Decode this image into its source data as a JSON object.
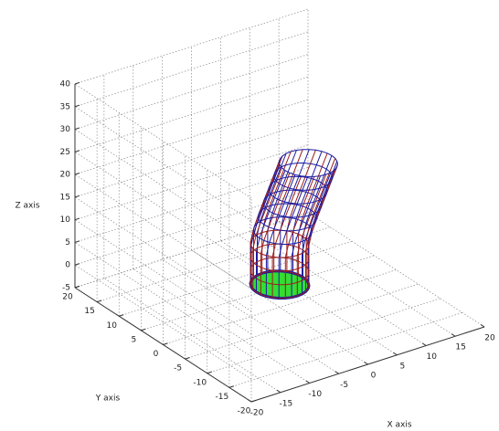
{
  "chart_data": {
    "type": "tube3d",
    "x_label": "X axis",
    "y_label": "Y axis",
    "z_label": "Z axis",
    "xlim": [
      -20,
      20
    ],
    "ylim": [
      -20,
      20
    ],
    "zlim": [
      -5,
      40
    ],
    "xticks": [
      -20,
      -15,
      -10,
      -5,
      0,
      5,
      10,
      15,
      20
    ],
    "yticks": [
      -20,
      -15,
      -10,
      -5,
      0,
      5,
      10,
      15,
      20
    ],
    "zticks": [
      -5,
      0,
      5,
      10,
      15,
      20,
      25,
      30,
      35,
      40
    ],
    "grid": true,
    "x": [
      0,
      0,
      0,
      0,
      0.3,
      0.8,
      1.4,
      2,
      2.6,
      3.2
    ],
    "y": [
      0,
      0,
      0,
      0,
      -0.3,
      -0.7,
      -1.1,
      -1.5,
      -1.9,
      -2.3
    ],
    "z": [
      0,
      3,
      6,
      9,
      12,
      15,
      18,
      21,
      24,
      27
    ],
    "radius": 4,
    "color": "#9a1c1c",
    "edge_color": "#1c1ca0",
    "cap_color": "#33dd33"
  }
}
